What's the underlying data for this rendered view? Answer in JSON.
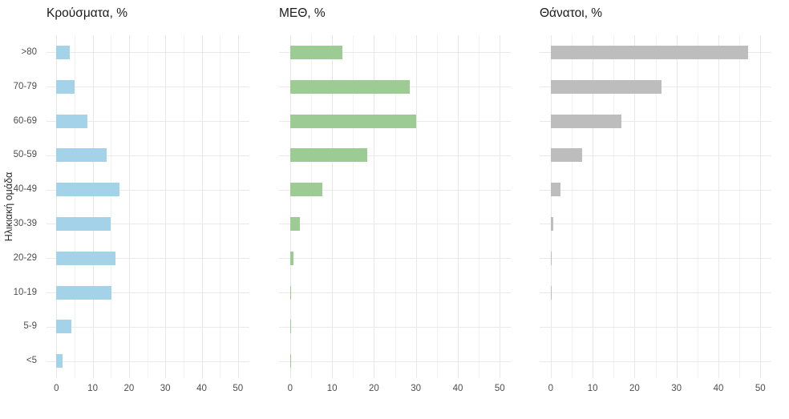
{
  "figure": {
    "y_axis_title": "Ηλικιακή ομάδα",
    "panel_titles": [
      "Κρούσματα, %",
      "ΜΕΘ, %",
      "Θάνατοι, %"
    ],
    "colors": {
      "cases_bar": "#a3d2e9",
      "icu_bar": "#9ccb94",
      "deaths_bar": "#bdbdbd",
      "gridline_major": "#e7e7e7",
      "gridline_minor": "#f2f2f2",
      "axis_text": "#4d4d4d",
      "title_text": "#1a1a1a"
    }
  },
  "chart_data": {
    "type": "bar",
    "orientation": "horizontal",
    "facets": 3,
    "ylabel": "Ηλικιακή ομάδα",
    "categories": [
      ">80",
      "70-79",
      "60-69",
      "50-59",
      "40-49",
      "30-39",
      "20-29",
      "10-19",
      "5-9",
      "<5"
    ],
    "series": [
      {
        "name": "Κρούσματα, %",
        "color": "#a3d2e9",
        "values": [
          3.7,
          5.0,
          8.5,
          13.9,
          17.4,
          15.0,
          16.3,
          15.2,
          4.2,
          1.8
        ]
      },
      {
        "name": "ΜΕΘ, %",
        "color": "#9ccb94",
        "values": [
          12.5,
          28.5,
          30.0,
          18.3,
          7.7,
          2.4,
          0.8,
          0.25,
          0.1,
          0.15
        ]
      },
      {
        "name": "Θάνατοι, %",
        "color": "#bdbdbd",
        "values": [
          47.0,
          26.5,
          16.8,
          7.5,
          2.4,
          0.7,
          0.15,
          0.1,
          0,
          0
        ]
      }
    ],
    "xlim": [
      0,
      50
    ],
    "x_ticks": [
      0,
      10,
      20,
      30,
      40,
      50
    ],
    "x_minor_ticks_every": 5,
    "grid": true,
    "legend": false
  }
}
